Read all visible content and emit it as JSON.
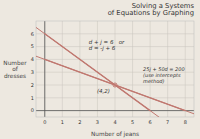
{
  "chart_data": {
    "type": "line",
    "title": "Solving a Systems\nof Equations by Graphing",
    "xlabel": "Number of jeans",
    "ylabel": "Number\nof\ndresses",
    "xlim": [
      -0.5,
      8.5
    ],
    "ylim": [
      -0.5,
      7
    ],
    "xticks": [
      0,
      1,
      2,
      3,
      4,
      5,
      6,
      7,
      8
    ],
    "yticks": [
      0,
      1,
      2,
      3,
      4,
      5,
      6
    ],
    "grid": true,
    "series": [
      {
        "x": [
          0,
          6
        ],
        "values": [
          6,
          0
        ],
        "color": "#c07870"
      },
      {
        "x": [
          0,
          8
        ],
        "values": [
          4,
          0
        ],
        "color": "#c07870"
      },
      {
        "type": "scatter",
        "x": [
          4
        ],
        "values": [
          2
        ],
        "color": "#c07870",
        "marker": "circle"
      }
    ],
    "annotations": [
      {
        "text": "(4,2)"
      },
      {
        "text": "d + j = 6   or\nd = -j + 6"
      },
      {
        "text": "25j + 50d = 200\n(use intercepts\nmethod)"
      }
    ]
  }
}
